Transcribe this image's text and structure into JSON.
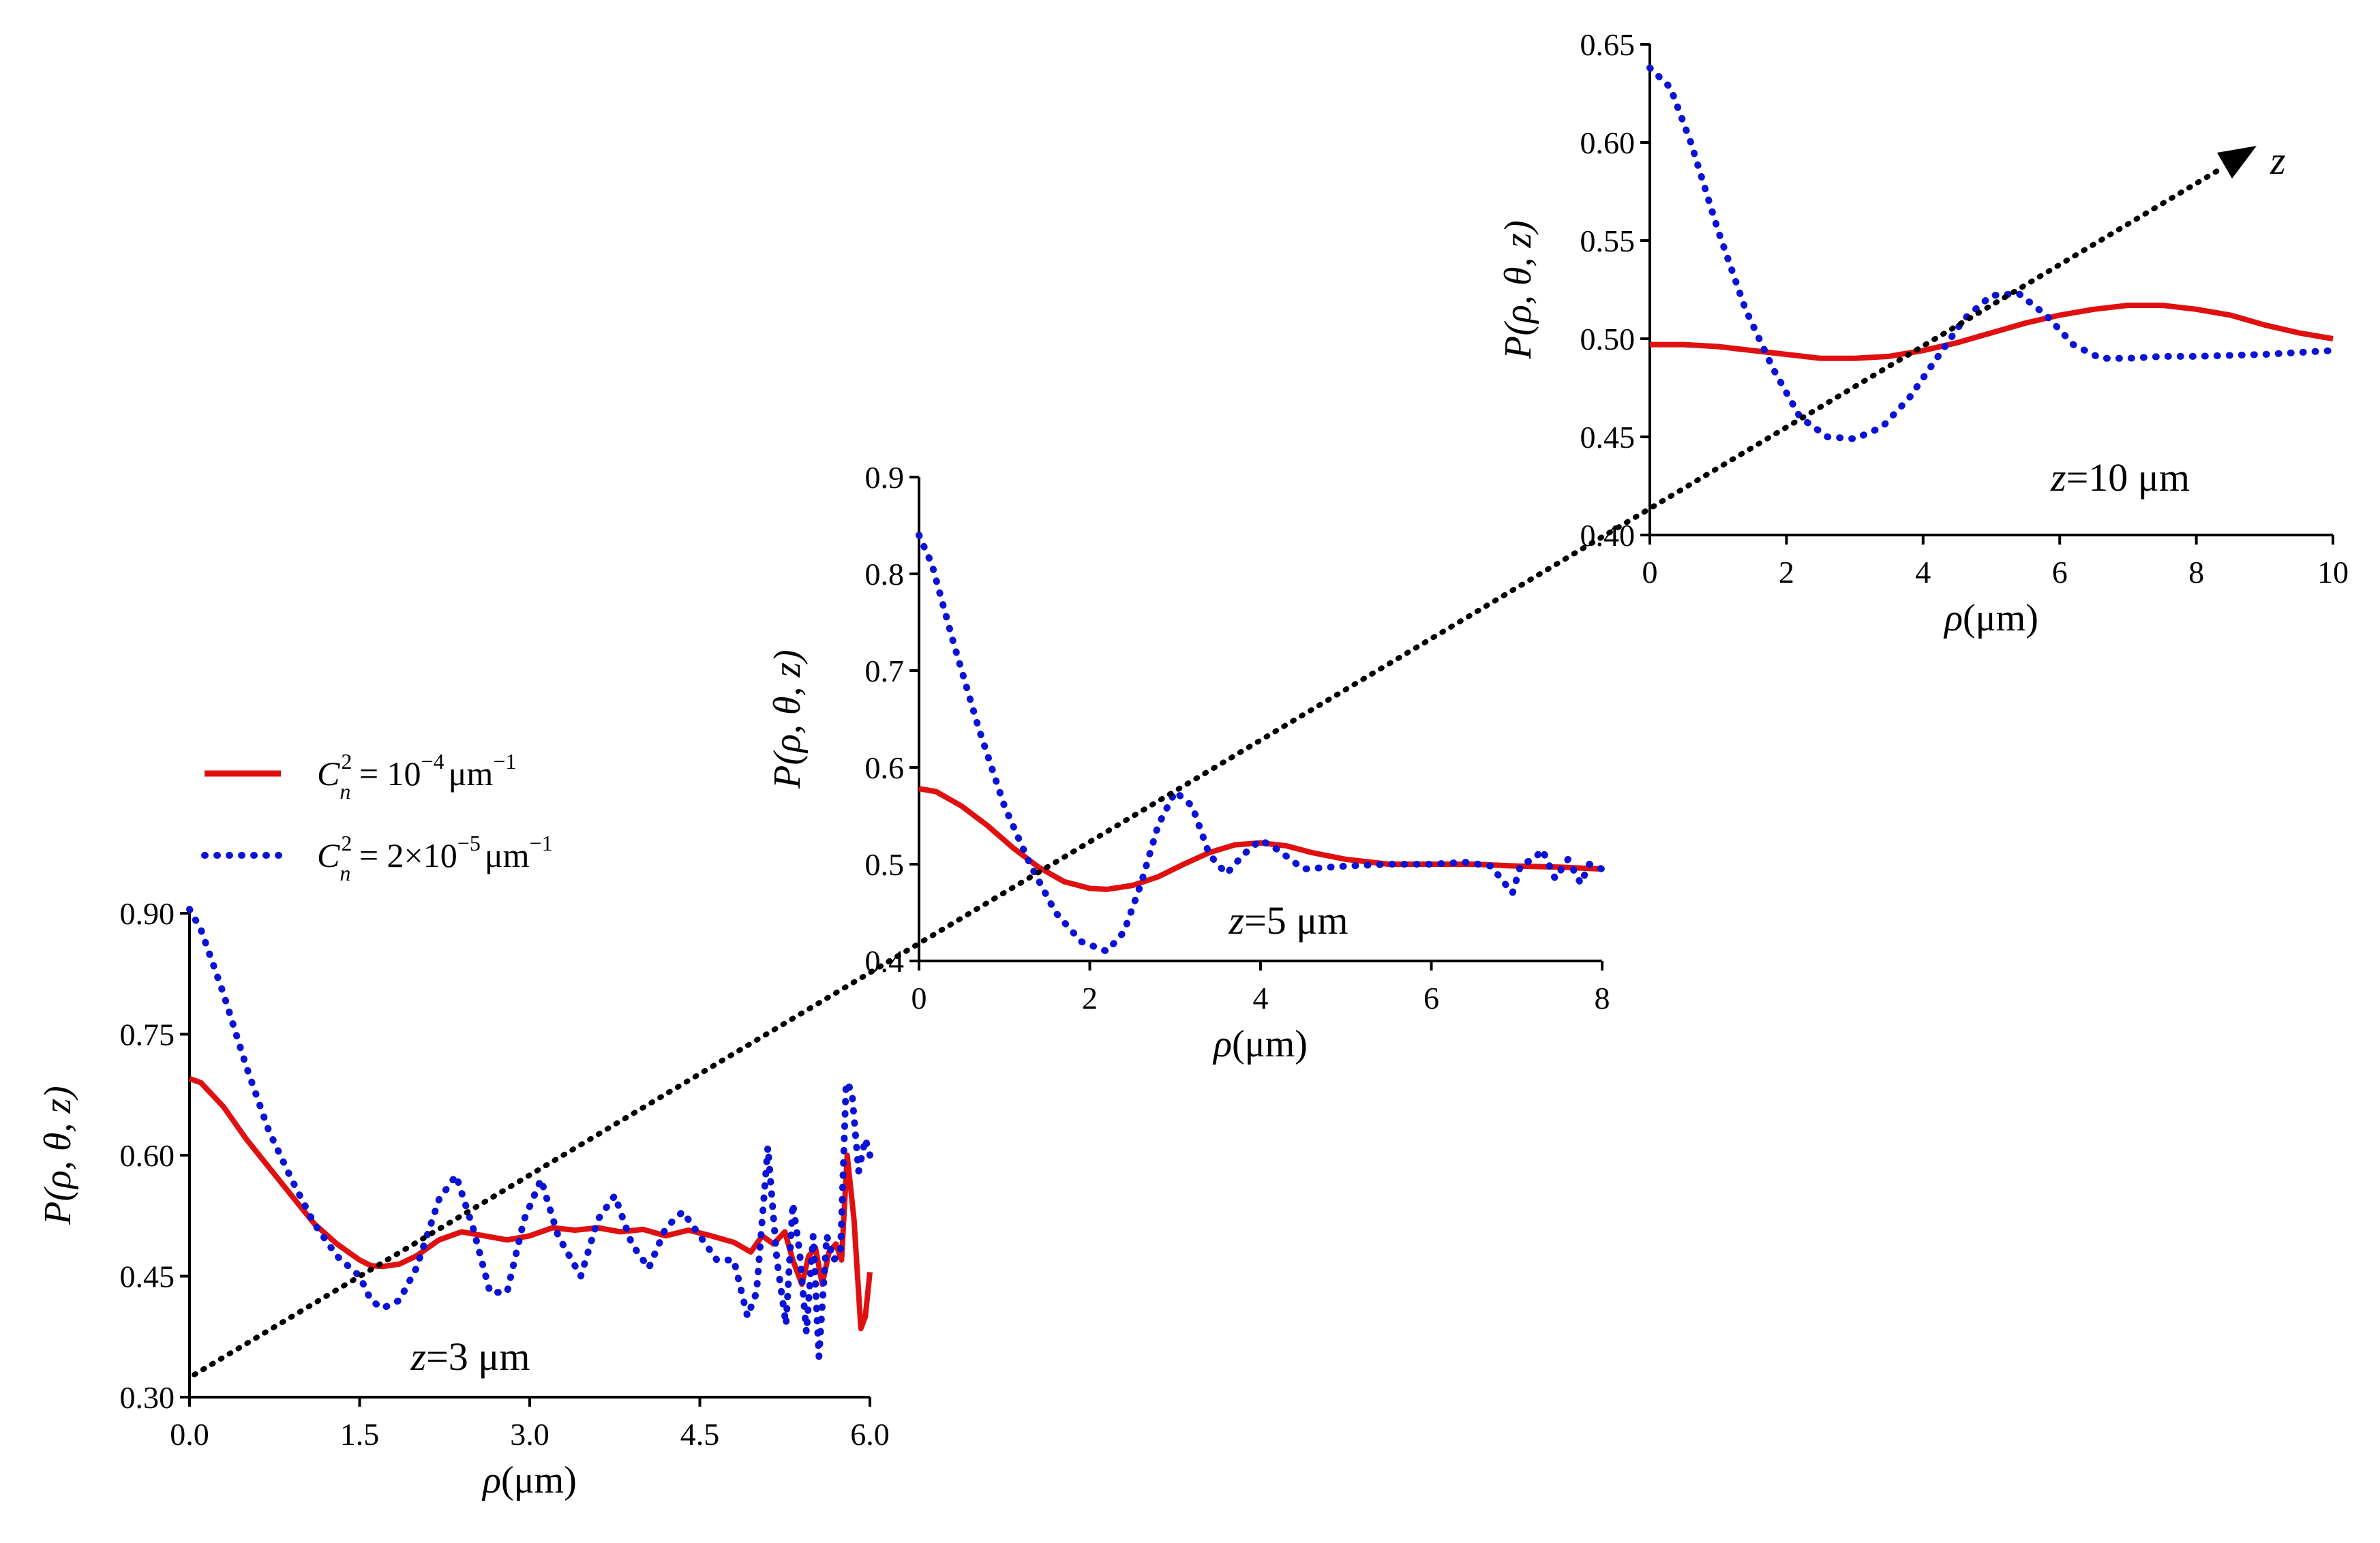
{
  "chart_data": [
    {
      "type": "line",
      "panel": "z = 3 um",
      "annotation": {
        "z": "z",
        "value": "=3 μm"
      },
      "xlabel": {
        "symbol": "ρ",
        "unit": "(μm)"
      },
      "ylabel": {
        "prefix": "P(",
        "args": "ρ, θ, z",
        "suffix": ")"
      },
      "xlim": [
        0,
        6
      ],
      "ylim": [
        0.3,
        0.9
      ],
      "xticks": [
        "0.0",
        "1.5",
        "3.0",
        "4.5",
        "6.0"
      ],
      "xtick_values": [
        0,
        1.5,
        3.0,
        4.5,
        6.0
      ],
      "yticks": [
        "0.30",
        "0.45",
        "0.60",
        "0.75",
        "0.90"
      ],
      "ytick_values": [
        0.3,
        0.45,
        0.6,
        0.75,
        0.9
      ],
      "series": [
        {
          "name": "Cn2 = 1e-4 um^-1",
          "x": [
            0,
            0.1,
            0.3,
            0.5,
            0.7,
            0.9,
            1.1,
            1.3,
            1.5,
            1.6,
            1.7,
            1.85,
            2.0,
            2.2,
            2.4,
            2.6,
            2.8,
            3.0,
            3.2,
            3.4,
            3.6,
            3.8,
            4.0,
            4.2,
            4.4,
            4.6,
            4.8,
            4.95,
            5.05,
            5.15,
            5.25,
            5.32,
            5.4,
            5.46,
            5.52,
            5.58,
            5.64,
            5.7,
            5.75,
            5.8,
            5.86,
            5.92,
            5.96,
            6.0
          ],
          "y": [
            0.695,
            0.69,
            0.66,
            0.62,
            0.585,
            0.55,
            0.515,
            0.49,
            0.47,
            0.463,
            0.462,
            0.465,
            0.475,
            0.495,
            0.505,
            0.5,
            0.495,
            0.5,
            0.51,
            0.507,
            0.51,
            0.505,
            0.508,
            0.5,
            0.507,
            0.5,
            0.492,
            0.48,
            0.5,
            0.49,
            0.505,
            0.47,
            0.44,
            0.475,
            0.485,
            0.44,
            0.48,
            0.49,
            0.47,
            0.6,
            0.52,
            0.385,
            0.4,
            0.455
          ]
        },
        {
          "name": "Cn2 = 2e-5 um^-1",
          "x": [
            0,
            0.1,
            0.3,
            0.5,
            0.7,
            0.9,
            1.1,
            1.3,
            1.5,
            1.6,
            1.7,
            1.85,
            2.0,
            2.2,
            2.35,
            2.5,
            2.65,
            2.8,
            2.95,
            3.1,
            3.25,
            3.45,
            3.6,
            3.75,
            3.9,
            4.05,
            4.2,
            4.35,
            4.5,
            4.65,
            4.8,
            4.92,
            5.0,
            5.1,
            5.18,
            5.26,
            5.32,
            5.38,
            5.44,
            5.5,
            5.55,
            5.62,
            5.68,
            5.74,
            5.79,
            5.84,
            5.9,
            5.96,
            6.0
          ],
          "y": [
            0.905,
            0.88,
            0.8,
            0.71,
            0.63,
            0.57,
            0.515,
            0.475,
            0.45,
            0.42,
            0.41,
            0.42,
            0.46,
            0.545,
            0.575,
            0.51,
            0.43,
            0.43,
            0.52,
            0.57,
            0.5,
            0.45,
            0.52,
            0.55,
            0.49,
            0.46,
            0.51,
            0.53,
            0.5,
            0.47,
            0.47,
            0.4,
            0.43,
            0.61,
            0.47,
            0.39,
            0.54,
            0.48,
            0.38,
            0.5,
            0.35,
            0.5,
            0.47,
            0.48,
            0.69,
            0.68,
            0.58,
            0.62,
            0.6
          ]
        }
      ]
    },
    {
      "type": "line",
      "panel": "z = 5 um",
      "annotation": {
        "z": "z",
        "value": "=5 μm"
      },
      "xlabel": {
        "symbol": "ρ",
        "unit": "(μm)"
      },
      "ylabel": {
        "prefix": "P(",
        "args": "ρ, θ, z",
        "suffix": ")"
      },
      "xlim": [
        0,
        8
      ],
      "ylim": [
        0.4,
        0.9
      ],
      "xticks": [
        "0",
        "2",
        "4",
        "6",
        "8"
      ],
      "xtick_values": [
        0,
        2,
        4,
        6,
        8
      ],
      "yticks": [
        "0.4",
        "0.5",
        "0.6",
        "0.7",
        "0.8",
        "0.9"
      ],
      "ytick_values": [
        0.4,
        0.5,
        0.6,
        0.7,
        0.8,
        0.9
      ],
      "series": [
        {
          "name": "Cn2 = 1e-4 um^-1",
          "x": [
            0,
            0.2,
            0.5,
            0.8,
            1.1,
            1.4,
            1.7,
            2.0,
            2.2,
            2.5,
            2.8,
            3.1,
            3.4,
            3.7,
            4.0,
            4.3,
            4.6,
            5.0,
            5.5,
            6.0,
            6.5,
            7.0,
            7.5,
            8.0
          ],
          "y": [
            0.578,
            0.575,
            0.56,
            0.54,
            0.517,
            0.497,
            0.482,
            0.475,
            0.474,
            0.478,
            0.487,
            0.5,
            0.512,
            0.52,
            0.522,
            0.519,
            0.512,
            0.505,
            0.5,
            0.5,
            0.5,
            0.498,
            0.497,
            0.495
          ]
        },
        {
          "name": "Cn2 = 2e-5 um^-1",
          "x": [
            0,
            0.15,
            0.4,
            0.7,
            1.0,
            1.3,
            1.6,
            1.9,
            2.2,
            2.4,
            2.6,
            2.8,
            3.0,
            3.2,
            3.4,
            3.6,
            3.8,
            4.0,
            4.2,
            4.5,
            5.0,
            5.5,
            6.0,
            6.4,
            6.7,
            6.95,
            7.05,
            7.2,
            7.3,
            7.45,
            7.6,
            7.75,
            7.85,
            8.0
          ],
          "y": [
            0.84,
            0.81,
            0.73,
            0.64,
            0.56,
            0.5,
            0.45,
            0.42,
            0.41,
            0.43,
            0.48,
            0.54,
            0.575,
            0.56,
            0.51,
            0.49,
            0.51,
            0.525,
            0.515,
            0.495,
            0.498,
            0.5,
            0.5,
            0.502,
            0.498,
            0.47,
            0.5,
            0.505,
            0.515,
            0.485,
            0.505,
            0.48,
            0.5,
            0.495
          ]
        }
      ]
    },
    {
      "type": "line",
      "panel": "z = 10 um",
      "annotation": {
        "z": "z",
        "value": "=10 μm"
      },
      "xlabel": {
        "symbol": "ρ",
        "unit": "(μm)"
      },
      "ylabel": {
        "prefix": "P(",
        "args": "ρ, θ, z",
        "suffix": ")"
      },
      "xlim": [
        0,
        10
      ],
      "ylim": [
        0.4,
        0.65
      ],
      "xticks": [
        "0",
        "2",
        "4",
        "6",
        "8",
        "10"
      ],
      "xtick_values": [
        0,
        2,
        4,
        6,
        8,
        10
      ],
      "yticks": [
        "0.40",
        "0.45",
        "0.50",
        "0.55",
        "0.60",
        "0.65"
      ],
      "ytick_values": [
        0.4,
        0.45,
        0.5,
        0.55,
        0.6,
        0.65
      ],
      "series": [
        {
          "name": "Cn2 = 1e-4 um^-1",
          "x": [
            0,
            0.5,
            1.0,
            1.5,
            2.0,
            2.5,
            3.0,
            3.5,
            4.0,
            4.5,
            5.0,
            5.5,
            6.0,
            6.5,
            7.0,
            7.5,
            8.0,
            8.5,
            9.0,
            9.5,
            10.0
          ],
          "y": [
            0.497,
            0.497,
            0.496,
            0.494,
            0.492,
            0.49,
            0.49,
            0.491,
            0.494,
            0.498,
            0.503,
            0.508,
            0.512,
            0.515,
            0.517,
            0.517,
            0.515,
            0.512,
            0.507,
            0.503,
            0.5
          ]
        },
        {
          "name": "Cn2 = 2e-5 um^-1",
          "x": [
            0,
            0.3,
            0.6,
            1.0,
            1.4,
            1.8,
            2.2,
            2.6,
            3.0,
            3.4,
            3.8,
            4.2,
            4.6,
            5.0,
            5.4,
            5.8,
            6.2,
            6.6,
            7.0,
            7.5,
            8.0,
            9.0,
            10.0
          ],
          "y": [
            0.638,
            0.628,
            0.6,
            0.555,
            0.515,
            0.485,
            0.46,
            0.45,
            0.449,
            0.455,
            0.47,
            0.49,
            0.51,
            0.522,
            0.523,
            0.512,
            0.497,
            0.49,
            0.49,
            0.491,
            0.491,
            0.492,
            0.494
          ]
        }
      ]
    }
  ],
  "legend": {
    "series1": {
      "label_prefix": "C",
      "sub": "n",
      "sup": "2",
      "eq": " = 10",
      "exp": "−4",
      "unit": "μm",
      "unit_exp": "−1"
    },
    "series2": {
      "label_prefix": "C",
      "sub": "n",
      "sup": "2",
      "eq": " = 2×10",
      "exp": "−5",
      "unit": "μm",
      "unit_exp": "−1"
    }
  },
  "z_axis": {
    "label": "z"
  },
  "colors": {
    "series1": "#e01010",
    "series2": "#0a12d8",
    "axis": "#000000"
  }
}
